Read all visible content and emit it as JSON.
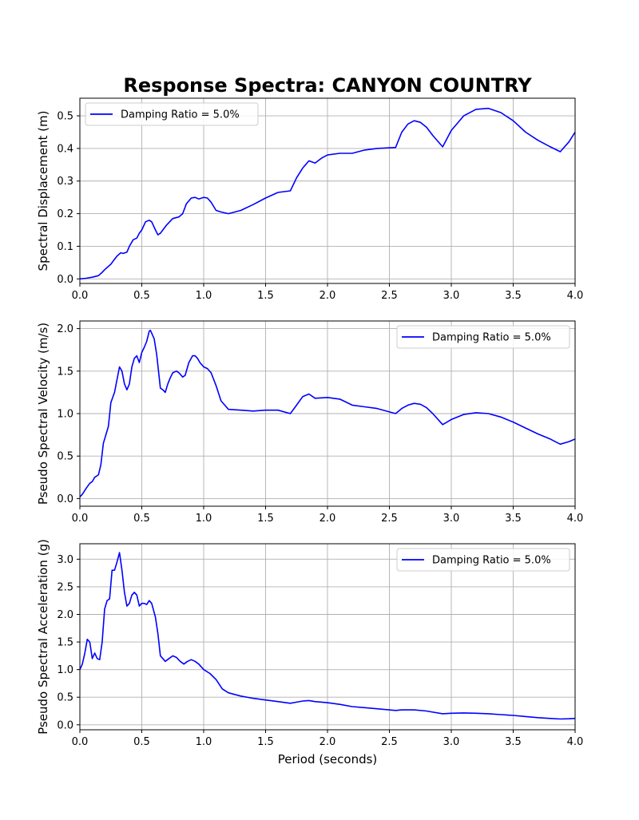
{
  "title": "Response Spectra: CANYON COUNTRY",
  "colors": {
    "line": "#0000ff",
    "grid": "#b0b0b0",
    "axis": "#000000"
  },
  "chart_data": [
    {
      "type": "line",
      "ylabel": "Spectral Displacement (m)",
      "xlabel": "",
      "xlim": [
        0,
        4
      ],
      "ylim": [
        -0.014,
        0.554
      ],
      "xticks": [
        "0.0",
        "0.5",
        "1.0",
        "1.5",
        "2.0",
        "2.5",
        "3.0",
        "3.5",
        "4.0"
      ],
      "yticks": [
        "0.0",
        "0.1",
        "0.2",
        "0.3",
        "0.4",
        "0.5"
      ],
      "grid": true,
      "legend_position": "upper-left",
      "series": [
        {
          "name": "Damping Ratio = 5.0%",
          "x": [
            0,
            0.05,
            0.1,
            0.15,
            0.18,
            0.2,
            0.25,
            0.27,
            0.3,
            0.33,
            0.35,
            0.38,
            0.4,
            0.43,
            0.46,
            0.48,
            0.5,
            0.53,
            0.56,
            0.58,
            0.61,
            0.63,
            0.65,
            0.7,
            0.75,
            0.8,
            0.83,
            0.86,
            0.9,
            0.93,
            0.96,
            1.0,
            1.03,
            1.06,
            1.1,
            1.14,
            1.2,
            1.3,
            1.4,
            1.5,
            1.6,
            1.7,
            1.75,
            1.8,
            1.85,
            1.9,
            1.95,
            2.0,
            2.1,
            2.2,
            2.3,
            2.4,
            2.55,
            2.6,
            2.65,
            2.7,
            2.75,
            2.8,
            2.85,
            2.93,
            3.0,
            3.1,
            3.2,
            3.3,
            3.4,
            3.5,
            3.6,
            3.7,
            3.8,
            3.88,
            3.95,
            4.0
          ],
          "values": [
            0.0,
            0.002,
            0.005,
            0.01,
            0.02,
            0.028,
            0.045,
            0.055,
            0.07,
            0.08,
            0.078,
            0.082,
            0.1,
            0.12,
            0.125,
            0.14,
            0.15,
            0.175,
            0.18,
            0.175,
            0.15,
            0.135,
            0.14,
            0.165,
            0.185,
            0.19,
            0.2,
            0.23,
            0.248,
            0.25,
            0.245,
            0.25,
            0.248,
            0.235,
            0.21,
            0.205,
            0.2,
            0.21,
            0.228,
            0.248,
            0.265,
            0.27,
            0.31,
            0.34,
            0.362,
            0.355,
            0.37,
            0.38,
            0.385,
            0.385,
            0.395,
            0.4,
            0.403,
            0.45,
            0.475,
            0.485,
            0.48,
            0.465,
            0.44,
            0.405,
            0.455,
            0.5,
            0.52,
            0.523,
            0.51,
            0.485,
            0.45,
            0.425,
            0.405,
            0.39,
            0.42,
            0.45
          ]
        }
      ]
    },
    {
      "type": "line",
      "ylabel": "Pseudo Spectral Velocity (m/s)",
      "xlabel": "",
      "xlim": [
        0,
        4
      ],
      "ylim": [
        -0.09,
        2.09
      ],
      "xticks": [
        "0.0",
        "0.5",
        "1.0",
        "1.5",
        "2.0",
        "2.5",
        "3.0",
        "3.5",
        "4.0"
      ],
      "yticks": [
        "0.0",
        "0.5",
        "1.0",
        "1.5",
        "2.0"
      ],
      "grid": true,
      "legend_position": "upper-right",
      "series": [
        {
          "name": "Damping Ratio = 5.0%",
          "x": [
            0,
            0.02,
            0.05,
            0.08,
            0.1,
            0.12,
            0.15,
            0.17,
            0.19,
            0.2,
            0.23,
            0.25,
            0.28,
            0.3,
            0.32,
            0.34,
            0.36,
            0.38,
            0.4,
            0.42,
            0.44,
            0.46,
            0.48,
            0.5,
            0.52,
            0.54,
            0.56,
            0.57,
            0.6,
            0.62,
            0.65,
            0.67,
            0.69,
            0.71,
            0.73,
            0.75,
            0.78,
            0.8,
            0.83,
            0.85,
            0.88,
            0.91,
            0.93,
            0.95,
            0.97,
            1.0,
            1.03,
            1.06,
            1.1,
            1.14,
            1.2,
            1.3,
            1.4,
            1.5,
            1.6,
            1.7,
            1.75,
            1.8,
            1.85,
            1.9,
            2.0,
            2.1,
            2.2,
            2.3,
            2.4,
            2.55,
            2.6,
            2.65,
            2.7,
            2.75,
            2.8,
            2.85,
            2.93,
            3.0,
            3.1,
            3.2,
            3.3,
            3.4,
            3.5,
            3.6,
            3.7,
            3.8,
            3.88,
            3.95,
            4.0
          ],
          "values": [
            0.02,
            0.05,
            0.12,
            0.18,
            0.2,
            0.25,
            0.28,
            0.4,
            0.65,
            0.7,
            0.85,
            1.13,
            1.25,
            1.4,
            1.55,
            1.5,
            1.35,
            1.28,
            1.35,
            1.55,
            1.65,
            1.68,
            1.6,
            1.72,
            1.78,
            1.85,
            1.97,
            1.98,
            1.88,
            1.7,
            1.3,
            1.28,
            1.25,
            1.35,
            1.42,
            1.48,
            1.5,
            1.48,
            1.43,
            1.45,
            1.6,
            1.68,
            1.68,
            1.65,
            1.6,
            1.55,
            1.53,
            1.48,
            1.33,
            1.15,
            1.05,
            1.04,
            1.03,
            1.04,
            1.04,
            1.0,
            1.1,
            1.2,
            1.23,
            1.18,
            1.19,
            1.17,
            1.1,
            1.08,
            1.06,
            1.0,
            1.06,
            1.1,
            1.12,
            1.11,
            1.07,
            1.0,
            0.87,
            0.93,
            0.99,
            1.01,
            1.0,
            0.96,
            0.9,
            0.83,
            0.76,
            0.7,
            0.64,
            0.67,
            0.7
          ]
        }
      ]
    },
    {
      "type": "line",
      "ylabel": "Pseudo Spectral Acceleration (g)",
      "xlabel": "Period (seconds)",
      "xlim": [
        0,
        4
      ],
      "ylim": [
        -0.09,
        3.28
      ],
      "xticks": [
        "0.0",
        "0.5",
        "1.0",
        "1.5",
        "2.0",
        "2.5",
        "3.0",
        "3.5",
        "4.0"
      ],
      "yticks": [
        "0.0",
        "0.5",
        "1.0",
        "1.5",
        "2.0",
        "2.5",
        "3.0"
      ],
      "grid": true,
      "legend_position": "upper-right",
      "series": [
        {
          "name": "Damping Ratio = 5.0%",
          "x": [
            0.0,
            0.02,
            0.04,
            0.06,
            0.08,
            0.1,
            0.12,
            0.14,
            0.16,
            0.18,
            0.2,
            0.22,
            0.24,
            0.26,
            0.28,
            0.3,
            0.32,
            0.34,
            0.36,
            0.38,
            0.4,
            0.42,
            0.44,
            0.46,
            0.48,
            0.5,
            0.52,
            0.54,
            0.56,
            0.58,
            0.61,
            0.63,
            0.65,
            0.67,
            0.69,
            0.72,
            0.75,
            0.78,
            0.81,
            0.84,
            0.87,
            0.9,
            0.93,
            0.96,
            1.0,
            1.05,
            1.1,
            1.15,
            1.2,
            1.3,
            1.4,
            1.5,
            1.6,
            1.7,
            1.75,
            1.8,
            1.85,
            1.9,
            2.0,
            2.1,
            2.2,
            2.3,
            2.4,
            2.55,
            2.6,
            2.7,
            2.8,
            2.85,
            2.93,
            3.0,
            3.1,
            3.2,
            3.3,
            3.4,
            3.5,
            3.6,
            3.7,
            3.8,
            3.88,
            3.95,
            4.0
          ],
          "values": [
            1.0,
            1.1,
            1.3,
            1.55,
            1.5,
            1.2,
            1.3,
            1.2,
            1.18,
            1.5,
            2.1,
            2.25,
            2.28,
            2.8,
            2.8,
            2.95,
            3.12,
            2.8,
            2.4,
            2.15,
            2.2,
            2.35,
            2.4,
            2.35,
            2.15,
            2.2,
            2.2,
            2.18,
            2.25,
            2.2,
            1.95,
            1.65,
            1.25,
            1.2,
            1.15,
            1.2,
            1.25,
            1.22,
            1.15,
            1.1,
            1.15,
            1.18,
            1.15,
            1.1,
            1.0,
            0.93,
            0.82,
            0.65,
            0.58,
            0.52,
            0.48,
            0.45,
            0.42,
            0.39,
            0.41,
            0.43,
            0.44,
            0.42,
            0.4,
            0.37,
            0.33,
            0.31,
            0.29,
            0.26,
            0.27,
            0.27,
            0.25,
            0.23,
            0.2,
            0.21,
            0.215,
            0.21,
            0.2,
            0.185,
            0.17,
            0.15,
            0.13,
            0.115,
            0.105,
            0.11,
            0.115
          ]
        }
      ]
    }
  ]
}
